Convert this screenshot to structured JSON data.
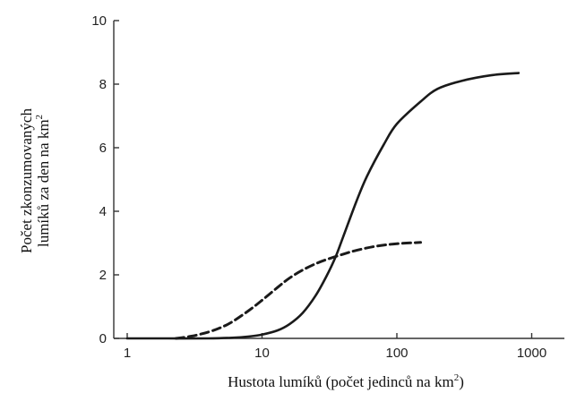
{
  "chart_data": {
    "type": "line",
    "xscale": "log",
    "xlim": [
      1,
      2000
    ],
    "ylim": [
      0,
      10
    ],
    "xticks": [
      1,
      10,
      100,
      1000
    ],
    "yticks": [
      0,
      2,
      4,
      6,
      8,
      10
    ],
    "xtick_labels": [
      "1",
      "10",
      "100",
      "1000"
    ],
    "ytick_labels": [
      "0",
      "2",
      "4",
      "6",
      "8",
      "10"
    ],
    "xlabel_main": "Hustota lumíků (počet jedinců na km",
    "xlabel_sup": "2",
    "xlabel_end": ")",
    "ylabel_line1": "Počet zkonzumovaných",
    "ylabel_line2_main": "lumíků za den na km",
    "ylabel_line2_sup": "2",
    "grid": false,
    "series": [
      {
        "style": "solid",
        "color": "#1a1a1a",
        "points": [
          [
            1,
            0.0
          ],
          [
            2,
            0.0
          ],
          [
            4,
            0.0
          ],
          [
            6,
            0.02
          ],
          [
            8,
            0.06
          ],
          [
            10,
            0.12
          ],
          [
            13,
            0.25
          ],
          [
            16,
            0.45
          ],
          [
            20,
            0.8
          ],
          [
            25,
            1.35
          ],
          [
            30,
            1.95
          ],
          [
            35,
            2.55
          ],
          [
            40,
            3.2
          ],
          [
            50,
            4.3
          ],
          [
            60,
            5.1
          ],
          [
            80,
            6.1
          ],
          [
            100,
            6.75
          ],
          [
            150,
            7.45
          ],
          [
            200,
            7.85
          ],
          [
            300,
            8.1
          ],
          [
            500,
            8.28
          ],
          [
            800,
            8.35
          ]
        ]
      },
      {
        "style": "dashed",
        "color": "#1a1a1a",
        "points": [
          [
            2.3,
            0.0
          ],
          [
            3,
            0.07
          ],
          [
            4,
            0.2
          ],
          [
            5,
            0.35
          ],
          [
            6,
            0.52
          ],
          [
            8,
            0.88
          ],
          [
            10,
            1.2
          ],
          [
            13,
            1.6
          ],
          [
            16,
            1.9
          ],
          [
            20,
            2.15
          ],
          [
            25,
            2.35
          ],
          [
            30,
            2.48
          ],
          [
            40,
            2.65
          ],
          [
            50,
            2.77
          ],
          [
            70,
            2.9
          ],
          [
            100,
            2.98
          ],
          [
            150,
            3.02
          ]
        ]
      }
    ]
  }
}
